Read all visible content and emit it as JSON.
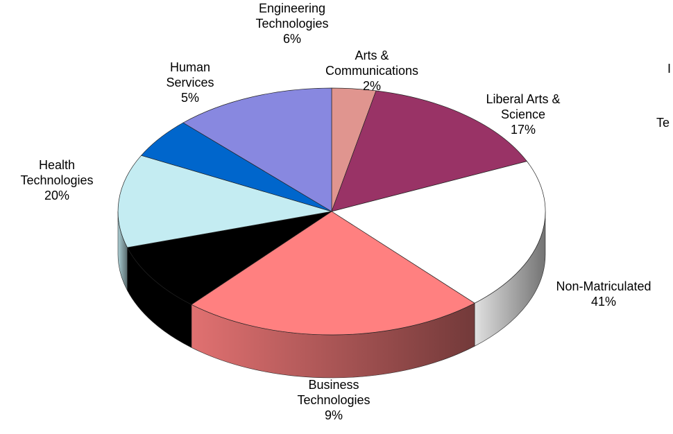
{
  "chart_data": {
    "type": "pie",
    "style": "3d",
    "legend": "none",
    "slices": [
      {
        "label": [
          "Arts &",
          "Communications"
        ],
        "percent": "2%",
        "color": "#e0958f"
      },
      {
        "label": [
          "Liberal Arts &",
          "Science"
        ],
        "percent": "17%",
        "color": "#993366"
      },
      {
        "label": [
          "Non-Matriculated"
        ],
        "percent": "41%",
        "color": "#ffffff"
      },
      {
        "label": [
          "Business",
          "Technologies"
        ],
        "percent": "9%",
        "color": "#ff8080"
      },
      {
        "label": [],
        "percent": "",
        "color": "#000000"
      },
      {
        "label": [
          "Health",
          "Technologies"
        ],
        "percent": "20%",
        "color": "#c4ecf2"
      },
      {
        "label": [
          "Human",
          "Services"
        ],
        "percent": "5%",
        "color": "#0066cc"
      },
      {
        "label": [
          "Engineering",
          "Technologies"
        ],
        "percent": "6%",
        "color": "#8888e0"
      }
    ],
    "partial_labels": [
      "I",
      "Te"
    ]
  }
}
